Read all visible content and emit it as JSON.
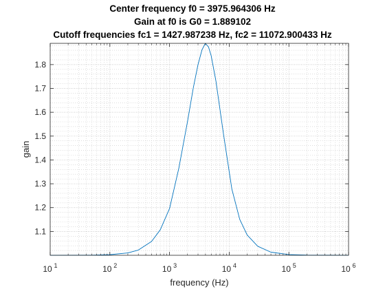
{
  "chart_data": {
    "type": "line",
    "title_lines": [
      "Center frequency f0 = 3975.964306 Hz",
      "Gain at f0 is G0 = 1.889102",
      "Cutoff frequencies fc1 = 1427.987238 Hz, fc2 = 11072.900433 Hz"
    ],
    "xlabel": "frequency (Hz)",
    "ylabel": "gain",
    "x_scale": "log",
    "xlim": [
      10,
      1000000
    ],
    "ylim": [
      1.0,
      1.889102
    ],
    "x_ticks": [
      {
        "value": 10,
        "base": "10",
        "exp": "1"
      },
      {
        "value": 100,
        "base": "10",
        "exp": "2"
      },
      {
        "value": 1000,
        "base": "10",
        "exp": "3"
      },
      {
        "value": 10000,
        "base": "10",
        "exp": "4"
      },
      {
        "value": 100000,
        "base": "10",
        "exp": "5"
      },
      {
        "value": 1000000,
        "base": "10",
        "exp": "6"
      }
    ],
    "y_ticks": [
      {
        "value": 1.1,
        "label": "1.1"
      },
      {
        "value": 1.2,
        "label": "1.2"
      },
      {
        "value": 1.3,
        "label": "1.3"
      },
      {
        "value": 1.4,
        "label": "1.4"
      },
      {
        "value": 1.5,
        "label": "1.5"
      },
      {
        "value": 1.6,
        "label": "1.6"
      },
      {
        "value": 1.7,
        "label": "1.7"
      },
      {
        "value": 1.8,
        "label": "1.8"
      }
    ],
    "grid": "on (major and minor)",
    "series": [
      {
        "color": "#0072bd",
        "x": [
          10,
          50,
          100,
          200,
          300,
          500,
          700,
          1000,
          1428,
          2000,
          2500,
          3000,
          3500,
          3976,
          4500,
          5000,
          6000,
          8000,
          11073,
          15000,
          20000,
          30000,
          50000,
          100000,
          200000,
          1000000
        ],
        "y": [
          1.0,
          1.0006,
          1.0025,
          1.01,
          1.022,
          1.058,
          1.107,
          1.196,
          1.364,
          1.561,
          1.702,
          1.8,
          1.862,
          1.889,
          1.874,
          1.836,
          1.73,
          1.51,
          1.278,
          1.151,
          1.085,
          1.038,
          1.013,
          1.003,
          1.0008,
          1.0
        ]
      }
    ]
  }
}
